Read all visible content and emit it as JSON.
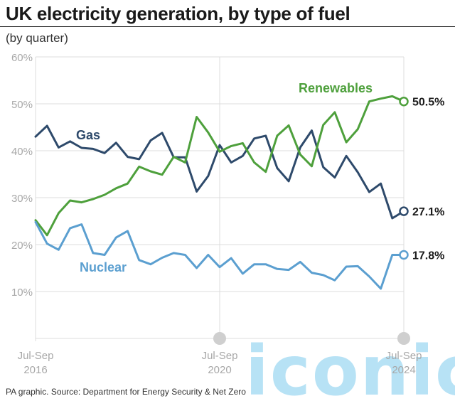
{
  "header": {
    "title": "UK electricity generation, by type of fuel",
    "subtitle": "(by quarter)"
  },
  "footer": {
    "source": "PA graphic. Source: Department for Energy Security & Net Zero"
  },
  "watermark": {
    "text": "iconic"
  },
  "colors": {
    "gas": "#2e4a6b",
    "renewables": "#4ea03c",
    "nuclear": "#5b9fd0",
    "grid": "#dcdcdc",
    "axis_text": "#a8a8a8"
  },
  "chart_data": {
    "type": "line",
    "title": "UK electricity generation, by type of fuel",
    "subtitle": "(by quarter)",
    "x_tick_labels": [
      {
        "line1": "Jul-Sep",
        "line2": "2016",
        "index": 0
      },
      {
        "line1": "Jul-Sep",
        "line2": "2020",
        "index": 16
      },
      {
        "line1": "Jul-Sep",
        "line2": "2024",
        "index": 32
      }
    ],
    "ylim": [
      0,
      60
    ],
    "y_ticks": [
      {
        "value": 10,
        "label": "10%"
      },
      {
        "value": 20,
        "label": "20%"
      },
      {
        "value": 30,
        "label": "30%"
      },
      {
        "value": 40,
        "label": "40%"
      },
      {
        "value": 50,
        "label": "50%"
      },
      {
        "value": 60,
        "label": "60%"
      }
    ],
    "grid": true,
    "series": [
      {
        "name": "Gas",
        "key": "gas",
        "values": [
          43.0,
          45.3,
          40.7,
          42.0,
          40.6,
          40.4,
          39.5,
          41.7,
          38.7,
          38.2,
          42.2,
          43.8,
          38.6,
          38.6,
          31.3,
          34.6,
          41.2,
          37.5,
          38.9,
          42.6,
          43.2,
          36.3,
          33.5,
          40.7,
          44.3,
          36.5,
          34.3,
          38.9,
          35.4,
          31.2,
          33.0,
          25.6,
          27.1
        ],
        "end_label": "27.1%"
      },
      {
        "name": "Renewables",
        "key": "renewables",
        "values": [
          25.2,
          22.0,
          26.7,
          29.4,
          29.0,
          29.7,
          30.6,
          32.0,
          33.0,
          36.6,
          35.6,
          34.9,
          38.7,
          37.5,
          47.2,
          43.9,
          39.8,
          41.0,
          41.6,
          37.5,
          35.5,
          43.2,
          45.4,
          39.2,
          36.7,
          45.5,
          48.2,
          41.8,
          44.6,
          50.5,
          51.1,
          51.6,
          50.5
        ],
        "end_label": "50.5%"
      },
      {
        "name": "Nuclear",
        "key": "nuclear",
        "values": [
          24.8,
          20.2,
          18.9,
          23.5,
          24.3,
          18.2,
          17.8,
          21.5,
          22.9,
          16.7,
          15.8,
          17.2,
          18.2,
          17.8,
          15.0,
          17.8,
          15.2,
          17.1,
          13.8,
          15.8,
          15.8,
          14.8,
          14.6,
          16.3,
          14.0,
          13.5,
          12.4,
          15.3,
          15.4,
          13.2,
          10.6,
          17.8,
          17.8
        ],
        "end_label": "17.8%"
      }
    ]
  }
}
